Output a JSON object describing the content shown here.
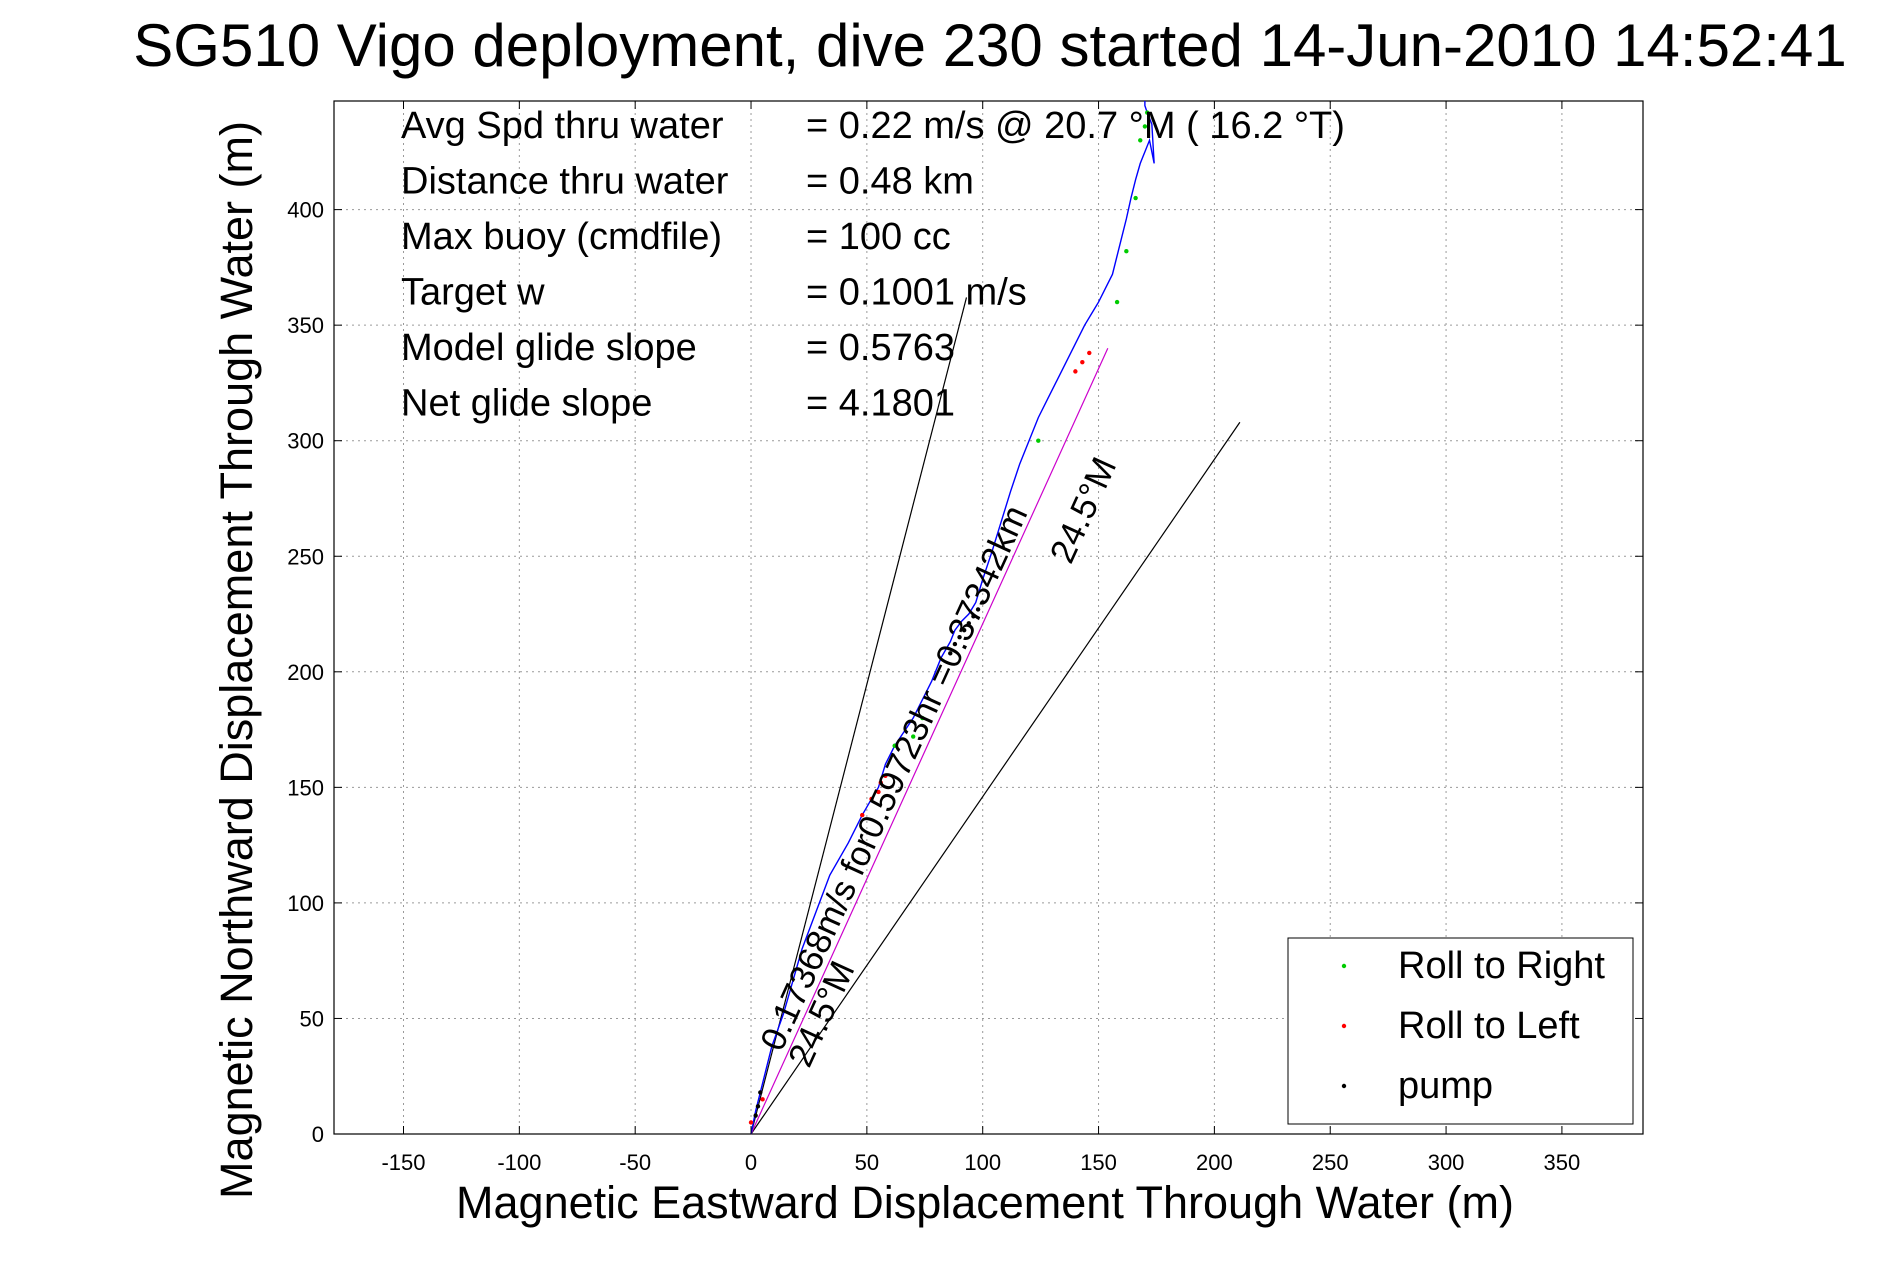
{
  "chart_data": {
    "type": "line",
    "title": "SG510 Vigo deployment, dive 230 started 14-Jun-2010 14:52:41",
    "xlabel": "Magnetic Eastward Displacement Through Water (m)",
    "ylabel": "Magnetic Northward Displacement Through Water (m)",
    "xlim": [
      -180,
      385
    ],
    "ylim": [
      0,
      447
    ],
    "xticks": [
      -150,
      -100,
      -50,
      0,
      50,
      100,
      150,
      200,
      250,
      300,
      350
    ],
    "yticks": [
      0,
      50,
      100,
      150,
      200,
      250,
      300,
      350,
      400
    ],
    "grid": true,
    "legend_position": "bottom-right",
    "stats": [
      {
        "label": "Avg Spd thru water",
        "value": "=  0.22 m/s @  20.7 °M ( 16.2 °T)"
      },
      {
        "label": "Distance thru water",
        "value": "=  0.48 km"
      },
      {
        "label": "Max buoy (cmdfile)",
        "value": "= 100 cc"
      },
      {
        "label": "Target w",
        "value": "= 0.1001 m/s"
      },
      {
        "label": "Model glide slope",
        "value": "= 0.5763"
      },
      {
        "label": "Net glide slope",
        "value": "= 4.1801"
      }
    ],
    "annotations": [
      {
        "text": "0.17368m/s for0.59723hr =0.37342km",
        "anchor": [
          13,
          35
        ],
        "angle_data_deg": 65.5
      },
      {
        "text": "24.5°M",
        "anchor": [
          25,
          28
        ],
        "angle_data_deg": 65.5
      },
      {
        "text": "24.5°M",
        "anchor": [
          138,
          246
        ],
        "angle_data_deg": 65.5
      }
    ],
    "reference_lines": [
      {
        "name": "cone-left",
        "color": "#000000",
        "x": [
          0,
          93
        ],
        "y": [
          0,
          362
        ]
      },
      {
        "name": "cone-right",
        "color": "#000000",
        "x": [
          0,
          211
        ],
        "y": [
          0,
          308
        ]
      },
      {
        "name": "net-direction",
        "color": "#cc00cc",
        "x": [
          0,
          154
        ],
        "y": [
          0,
          340
        ]
      }
    ],
    "track": {
      "name": "glider track",
      "color": "#0000ff",
      "x": [
        0,
        2,
        5,
        9,
        14,
        18,
        22,
        28,
        34,
        42,
        48,
        52,
        55,
        58,
        62,
        66,
        70,
        74,
        78,
        82,
        86,
        88,
        91,
        94,
        97,
        100,
        104,
        108,
        112,
        116,
        120,
        124,
        128,
        132,
        136,
        140,
        144,
        147,
        150,
        153,
        156,
        158,
        160,
        162,
        164,
        166,
        168,
        170,
        172,
        174,
        173,
        171,
        170,
        170,
        170
      ],
      "y": [
        0,
        10,
        22,
        38,
        52,
        66,
        80,
        96,
        112,
        126,
        138,
        145,
        150,
        160,
        168,
        174,
        180,
        188,
        196,
        206,
        213,
        218,
        222,
        225,
        230,
        240,
        252,
        265,
        278,
        290,
        300,
        310,
        318,
        326,
        334,
        342,
        350,
        355,
        360,
        366,
        372,
        380,
        388,
        396,
        405,
        413,
        420,
        425,
        430,
        420,
        437,
        442,
        445,
        446,
        447
      ]
    },
    "series": [
      {
        "name": "Roll to Right",
        "color": "#00cc00",
        "x": [
          62,
          70,
          74,
          124,
          158,
          162,
          166,
          168,
          170,
          171
        ],
        "y": [
          168,
          172,
          180,
          300,
          360,
          382,
          405,
          430,
          436,
          442
        ]
      },
      {
        "name": "Roll to Left",
        "color": "#ff0000",
        "x": [
          48,
          52,
          55,
          56,
          58,
          140,
          143,
          146,
          0,
          5
        ],
        "y": [
          138,
          145,
          148,
          152,
          155,
          330,
          334,
          338,
          5,
          15
        ]
      },
      {
        "name": "pump",
        "color": "#000000",
        "x": [
          86,
          88,
          90,
          92,
          94,
          96,
          98,
          100,
          2,
          3,
          4
        ],
        "y": [
          208,
          212,
          215,
          218,
          221,
          224,
          227,
          230,
          8,
          12,
          18
        ]
      }
    ]
  }
}
